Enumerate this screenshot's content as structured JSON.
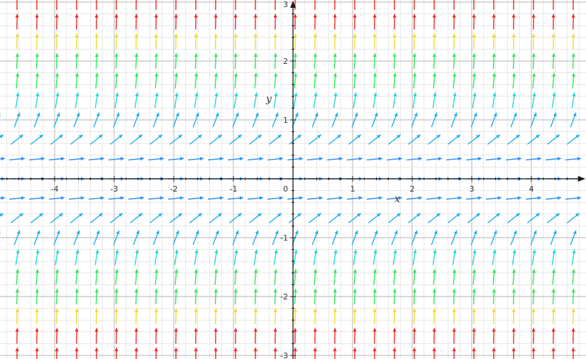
{
  "diagram": {
    "type": "slope-field",
    "x_range": [
      -4.95,
      4.95
    ],
    "y_range": [
      -3,
      3
    ],
    "x_ticks": [
      -4,
      -3,
      -2,
      -1,
      1,
      2,
      3,
      4
    ],
    "x_tick_labels": [
      "-4",
      "-3",
      "-2",
      "-1",
      "1",
      "2",
      "3",
      "4"
    ],
    "y_ticks": [
      -3,
      -2,
      -1,
      1,
      2,
      3
    ],
    "y_tick_labels": [
      "-3",
      "-2",
      "-1",
      "1",
      "2",
      "3"
    ],
    "origin_label": "0",
    "x_axis_label": "x",
    "y_axis_label": "y",
    "minor_grid_step": 0.2,
    "major_grid_step": 1,
    "field_step": 0.333333,
    "color_scale": [
      {
        "max_abs_y": 0.5,
        "color": "#2a8ff5"
      },
      {
        "max_abs_y": 1.0,
        "color": "#1fb0ea"
      },
      {
        "max_abs_y": 1.5,
        "color": "#22d9d2"
      },
      {
        "max_abs_y": 2.0,
        "color": "#2ee85a"
      },
      {
        "max_abs_y": 2.5,
        "color": "#f3d92a"
      },
      {
        "max_abs_y": 3.1,
        "color": "#ee2a24"
      }
    ],
    "axis_color": "#1a1a1a",
    "grid_color": "#d9d9d9",
    "major_grid_color": "#b3b3b3"
  }
}
